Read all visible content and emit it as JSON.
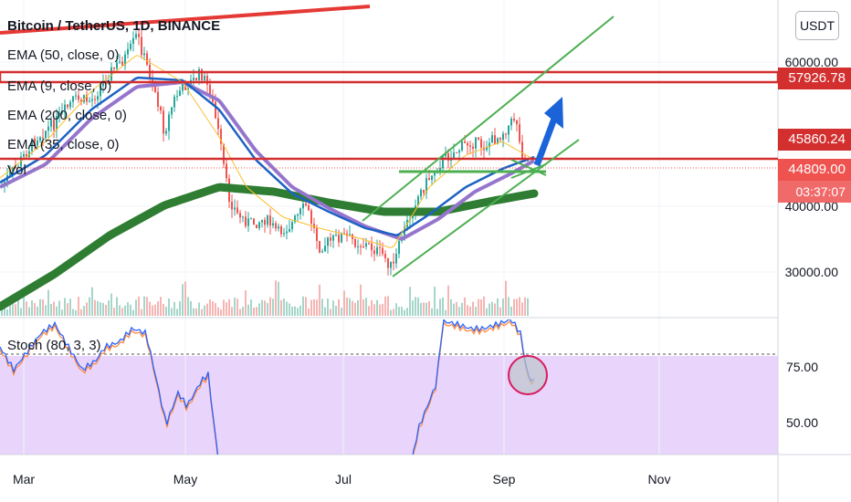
{
  "header": {
    "title": "Bitcoin / TetherUS, 1D, BINANCE",
    "currency": "USDT"
  },
  "legend": [
    "EMA (50, close, 0)",
    "EMA (9, close, 0)",
    "EMA (200, close, 0)",
    "EMA (35, close, 0)",
    "Vol"
  ],
  "stoch_label": "Stoch (80, 3, 3)",
  "price_axis": [
    "60000.00",
    "40000.00",
    "30000.00"
  ],
  "stoch_axis": [
    "75.00",
    "50.00"
  ],
  "price_tags": {
    "resistance": "57926.78",
    "last_high": "45860.24",
    "current": "44809.00",
    "countdown": "03:37:07"
  },
  "colors": {
    "green_line": "#4caf50",
    "ema200": "#2e7d32",
    "ema50": "#9575cd",
    "ema9": "#1e62c4",
    "resistance": "#d32f2f",
    "candle_up": "#26a69a",
    "candle_down": "#ef5350",
    "arrow": "#1a63d8",
    "stoch_bg": "#e9d5fb"
  },
  "chart_data": {
    "type": "candlestick",
    "x_ticks": [
      "Mar",
      "May",
      "Jul",
      "Sep",
      "Nov"
    ],
    "y_ticks": [
      60000,
      40000,
      30000
    ],
    "levels": [
      57926.78,
      45860.24,
      44809.0
    ],
    "stoch_ticks": [
      75,
      50
    ],
    "indicators": [
      "EMA 50",
      "EMA 9",
      "EMA 200",
      "EMA 35",
      "Vol",
      "Stoch 80 3 3"
    ]
  }
}
